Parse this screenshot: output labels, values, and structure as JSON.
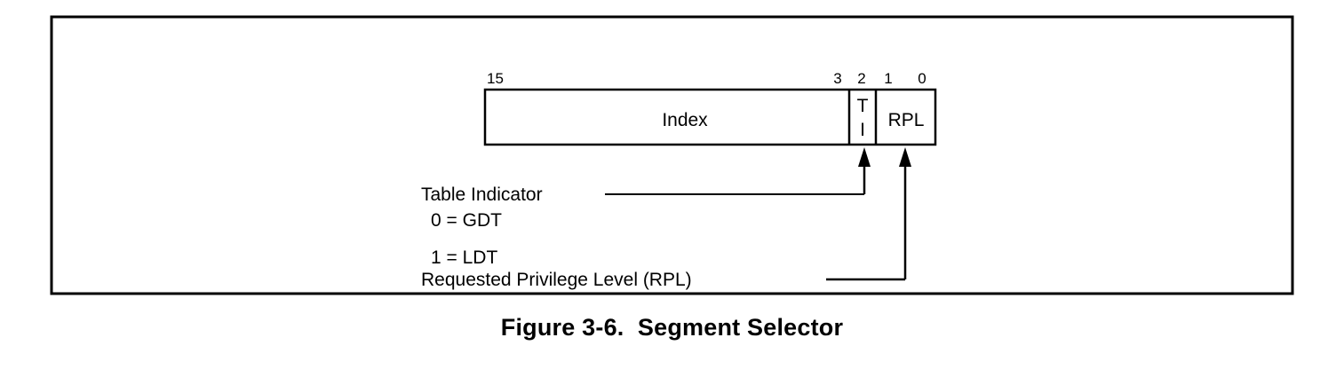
{
  "figure": {
    "caption": "Figure 3-6.  Segment Selector"
  },
  "bit_positions": {
    "b15": "15",
    "b3": "3",
    "b2": "2",
    "b1": "1",
    "b0": "0"
  },
  "fields": {
    "index": "Index",
    "ti_top": "T",
    "ti_bottom": "I",
    "rpl": "RPL"
  },
  "legend": {
    "table_indicator": "Table Indicator",
    "gdt": "0 = GDT",
    "ldt": "1 = LDT",
    "requested_privilege_level": "Requested Privilege Level (RPL)"
  }
}
